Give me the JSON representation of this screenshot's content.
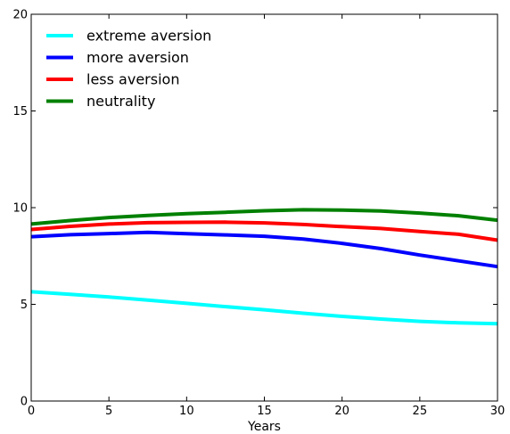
{
  "chart_data": {
    "type": "line",
    "title": "",
    "xlabel": "Years",
    "ylabel": "",
    "xlim": [
      0,
      30
    ],
    "ylim": [
      0,
      20
    ],
    "xticks": [
      0,
      5,
      10,
      15,
      20,
      25,
      30
    ],
    "yticks": [
      0,
      5,
      10,
      15,
      20
    ],
    "grid": false,
    "legend_position": "top-left",
    "x": [
      0,
      2.5,
      5,
      7.5,
      10,
      12.5,
      15,
      17.5,
      20,
      22.5,
      25,
      27.5,
      30
    ],
    "series": [
      {
        "name": "extreme aversion",
        "color": "#00ffff",
        "values": [
          5.65,
          5.52,
          5.38,
          5.22,
          5.05,
          4.88,
          4.72,
          4.54,
          4.38,
          4.24,
          4.12,
          4.04,
          4.0
        ]
      },
      {
        "name": "more aversion",
        "color": "#0000ff",
        "values": [
          8.5,
          8.6,
          8.66,
          8.72,
          8.65,
          8.59,
          8.52,
          8.38,
          8.15,
          7.88,
          7.55,
          7.25,
          6.95
        ]
      },
      {
        "name": "less aversion",
        "color": "#ff0000",
        "values": [
          8.87,
          9.03,
          9.15,
          9.22,
          9.24,
          9.25,
          9.21,
          9.13,
          9.02,
          8.92,
          8.77,
          8.62,
          8.32
        ]
      },
      {
        "name": "neutrality",
        "color": "#008000",
        "values": [
          9.15,
          9.33,
          9.49,
          9.6,
          9.69,
          9.76,
          9.84,
          9.89,
          9.87,
          9.83,
          9.72,
          9.58,
          9.35
        ]
      }
    ]
  }
}
